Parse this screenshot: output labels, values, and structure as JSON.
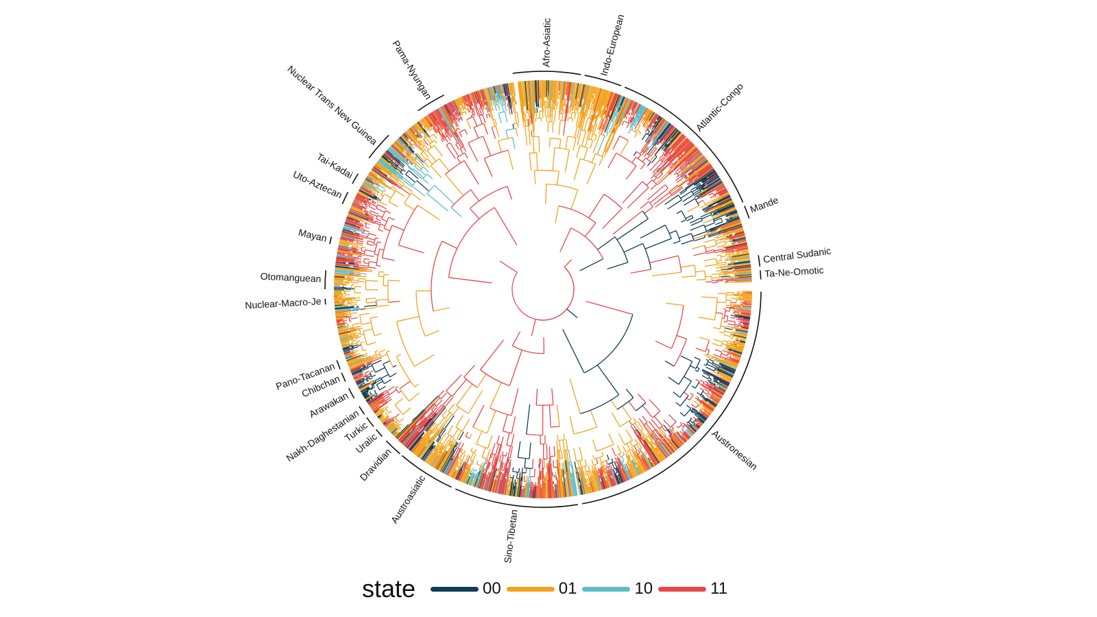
{
  "clades": [
    "Afro-Asiatic",
    "Indo-European",
    "Atlantic-Congo",
    "Mande",
    "Central Sudanic",
    "Ta-Ne-Omotic",
    "Austronesian",
    "Sino-Tibetan",
    "Austroasiatic",
    "Dravidian",
    "Uralic",
    "Turkic",
    "Nakh-Daghestanian",
    "Arawakan",
    "Chibchan",
    "Pano-Tacanan",
    "Nuclear-Macro-Je",
    "Otomanguean",
    "Mayan",
    "Uto-Aztecan",
    "Tai-Kadai",
    "Nuclear Trans New Guinea",
    "Pama-Nyungan"
  ],
  "legend": {
    "title": "state",
    "items": [
      {
        "label": "00",
        "color": "#0f3d57"
      },
      {
        "label": "01",
        "color": "#f2a31d"
      },
      {
        "label": "10",
        "color": "#5bbec8"
      },
      {
        "label": "11",
        "color": "#e6484a"
      }
    ]
  }
}
